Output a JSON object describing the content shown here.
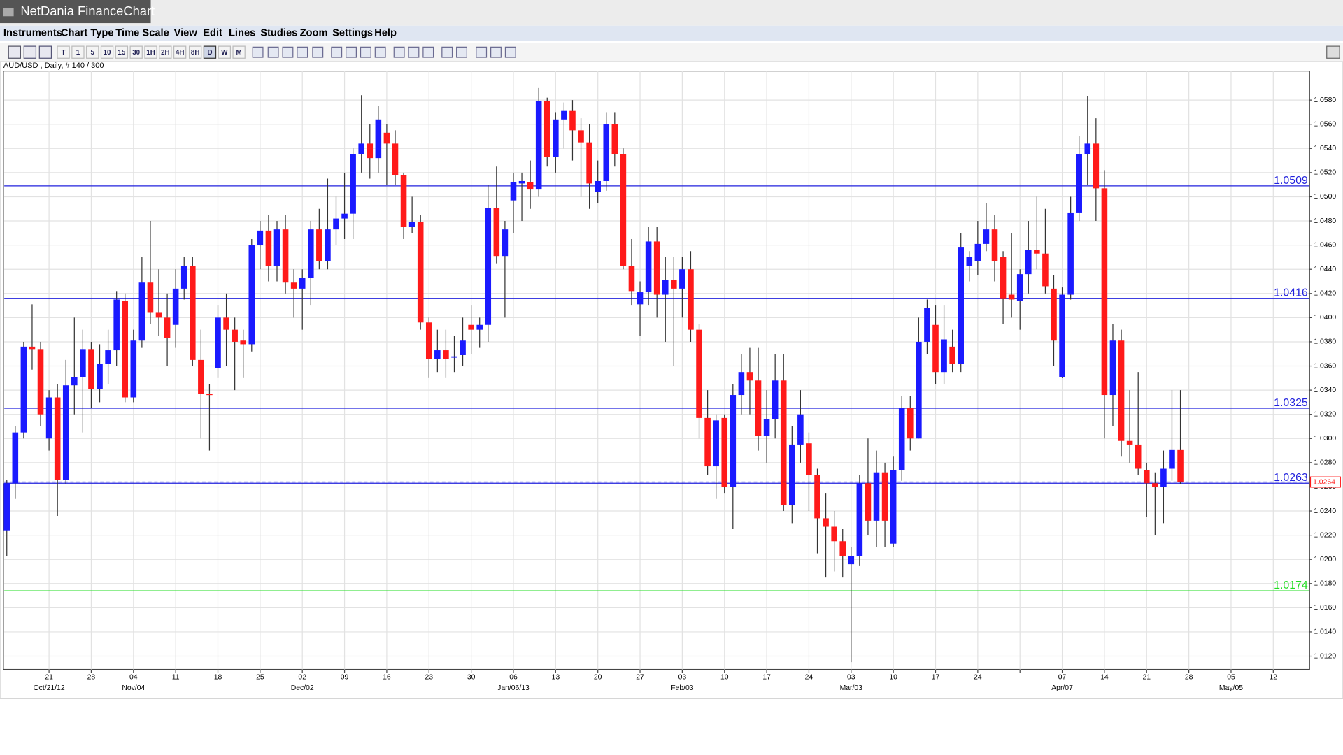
{
  "window": {
    "title": "NetDania FinanceChart"
  },
  "menu": [
    "Instruments",
    "Chart Type",
    "Time Scale",
    "View",
    "Edit",
    "Lines",
    "Studies",
    "Zoom",
    "Settings",
    "Help"
  ],
  "toolbar": [
    "T",
    "1",
    "5",
    "10",
    "15",
    "30",
    "1H",
    "2H",
    "4H",
    "8H",
    "D",
    "W",
    "M"
  ],
  "chart_data": {
    "type": "candlestick",
    "subtitle": "AUD/USD , Daily, # 140 / 300",
    "up_color": "#1a1aff",
    "down_color": "#ff1a1a",
    "open": [
      1.0224,
      1.0263,
      1.0305,
      1.0376,
      1.0374,
      1.03,
      1.0334,
      1.0266,
      1.0344,
      1.0351,
      1.0374,
      1.0341,
      1.0362,
      1.0373,
      1.0414,
      1.0334,
      1.0381,
      1.0429,
      1.0404,
      1.04,
      1.0394,
      1.0424,
      1.0443,
      1.0365,
      1.0337,
      1.0358,
      1.04,
      1.039,
      1.0381,
      1.0378,
      1.046,
      1.0472,
      1.0443,
      1.0473,
      1.0429,
      1.0424,
      1.0433,
      1.0473,
      1.0447,
      1.0473,
      1.0482,
      1.0486,
      1.0535,
      1.0544,
      1.0532,
      1.0553,
      1.0544,
      1.0518,
      1.0475,
      1.0479,
      1.0396,
      1.0366,
      1.0373,
      1.0367,
      1.0369,
      1.0394,
      1.039,
      1.0394,
      1.0491,
      1.0451,
      1.0497,
      1.0511,
      1.0512,
      1.0506,
      1.0579,
      1.0533,
      1.0564,
      1.0571,
      1.0555,
      1.0545,
      1.0504,
      1.0513,
      1.056,
      1.0535,
      1.0443,
      1.0411,
      1.0421,
      1.0463,
      1.0419,
      1.0431,
      1.0424,
      1.044,
      1.039,
      1.0317,
      1.0277,
      1.0317,
      1.026,
      1.0336,
      1.0355,
      1.0348,
      1.0302,
      1.0316,
      1.0348,
      1.0245,
      1.0295,
      1.0296,
      1.027,
      1.0234,
      1.0227,
      1.0215,
      1.0196,
      1.0203,
      1.0263,
      1.0232,
      1.0272,
      1.0213,
      1.0274,
      1.0325,
      1.03,
      1.038,
      1.0394,
      1.0355,
      1.0376,
      1.0362,
      1.0443,
      1.0447,
      1.0461,
      1.0473,
      1.045,
      1.0419,
      1.0414,
      1.0436,
      1.0456,
      1.0453,
      1.0424,
      1.0351,
      1.0419,
      1.0487,
      1.0535,
      1.0544,
      1.0507,
      1.0336,
      1.0381,
      1.0298,
      1.0295,
      1.0274,
      1.0263,
      1.026,
      1.0275,
      1.0291
    ],
    "high": [
      1.0266,
      1.031,
      1.038,
      1.0411,
      1.038,
      1.034,
      1.0345,
      1.0365,
      1.04,
      1.039,
      1.038,
      1.0378,
      1.039,
      1.0422,
      1.042,
      1.039,
      1.045,
      1.048,
      1.044,
      1.042,
      1.044,
      1.045,
      1.045,
      1.039,
      1.0345,
      1.041,
      1.042,
      1.04,
      1.039,
      1.0465,
      1.048,
      1.0485,
      1.048,
      1.0485,
      1.044,
      1.044,
      1.048,
      1.049,
      1.0515,
      1.05,
      1.052,
      1.054,
      1.0584,
      1.056,
      1.0575,
      1.056,
      1.0555,
      1.052,
      1.05,
      1.0485,
      1.04,
      1.039,
      1.039,
      1.0385,
      1.04,
      1.041,
      1.04,
      1.051,
      1.0525,
      1.048,
      1.052,
      1.052,
      1.053,
      1.059,
      1.0582,
      1.057,
      1.0578,
      1.058,
      1.0565,
      1.056,
      1.053,
      1.057,
      1.057,
      1.054,
      1.0465,
      1.043,
      1.0475,
      1.0475,
      1.045,
      1.045,
      1.045,
      1.0455,
      1.0395,
      1.034,
      1.032,
      1.032,
      1.0345,
      1.037,
      1.0375,
      1.0375,
      1.034,
      1.037,
      1.037,
      1.031,
      1.034,
      1.0305,
      1.0275,
      1.0255,
      1.024,
      1.0225,
      1.021,
      1.027,
      1.03,
      1.029,
      1.028,
      1.0285,
      1.0335,
      1.0335,
      1.04,
      1.0415,
      1.041,
      1.041,
      1.039,
      1.047,
      1.0455,
      1.048,
      1.0495,
      1.0485,
      1.0455,
      1.047,
      1.044,
      1.048,
      1.05,
      1.049,
      1.0435,
      1.0425,
      1.05,
      1.055,
      1.0583,
      1.0565,
      1.0522,
      1.0395,
      1.039,
      1.034,
      1.0355,
      1.028,
      1.0272,
      1.029,
      1.034,
      1.034
    ],
    "low": [
      1.0203,
      1.025,
      1.03,
      1.0357,
      1.031,
      1.029,
      1.0236,
      1.0262,
      1.032,
      1.0305,
      1.0325,
      1.033,
      1.0345,
      1.036,
      1.033,
      1.033,
      1.0375,
      1.0395,
      1.0385,
      1.036,
      1.0375,
      1.0415,
      1.036,
      1.03,
      1.029,
      1.035,
      1.036,
      1.034,
      1.035,
      1.0372,
      1.044,
      1.043,
      1.043,
      1.042,
      1.04,
      1.039,
      1.041,
      1.044,
      1.044,
      1.046,
      1.0465,
      1.0465,
      1.052,
      1.0515,
      1.052,
      1.051,
      1.051,
      1.0465,
      1.047,
      1.039,
      1.035,
      1.0355,
      1.035,
      1.0355,
      1.036,
      1.037,
      1.0375,
      1.038,
      1.0445,
      1.04,
      1.047,
      1.048,
      1.049,
      1.05,
      1.0525,
      1.052,
      1.054,
      1.053,
      1.05,
      1.049,
      1.0495,
      1.0505,
      1.0525,
      1.044,
      1.041,
      1.0385,
      1.041,
      1.04,
      1.038,
      1.036,
      1.04,
      1.038,
      1.03,
      1.027,
      1.025,
      1.0255,
      1.0225,
      1.032,
      1.032,
      1.029,
      1.028,
      1.03,
      1.024,
      1.023,
      1.028,
      1.024,
      1.0205,
      1.0185,
      1.019,
      1.0185,
      1.0115,
      1.0195,
      1.022,
      1.021,
      1.021,
      1.021,
      1.0265,
      1.029,
      1.03,
      1.037,
      1.0345,
      1.0345,
      1.0355,
      1.0355,
      1.043,
      1.0435,
      1.0455,
      1.043,
      1.0395,
      1.04,
      1.039,
      1.042,
      1.044,
      1.042,
      1.036,
      1.035,
      1.0415,
      1.048,
      1.051,
      1.048,
      1.03,
      1.031,
      1.0285,
      1.028,
      1.027,
      1.0235,
      1.022,
      1.023,
      1.0265,
      1.0262
    ],
    "close": [
      1.0263,
      1.0305,
      1.0376,
      1.0374,
      1.032,
      1.0334,
      1.0266,
      1.0344,
      1.0351,
      1.0374,
      1.0341,
      1.0362,
      1.0373,
      1.0415,
      1.0334,
      1.0381,
      1.0429,
      1.0404,
      1.04,
      1.0383,
      1.0424,
      1.0443,
      1.0365,
      1.0337,
      1.0336,
      1.04,
      1.039,
      1.038,
      1.0378,
      1.046,
      1.0472,
      1.0443,
      1.0473,
      1.0429,
      1.0424,
      1.0433,
      1.0473,
      1.0447,
      1.0473,
      1.0482,
      1.0486,
      1.0535,
      1.0544,
      1.0532,
      1.0564,
      1.0544,
      1.0518,
      1.0475,
      1.0479,
      1.0396,
      1.0366,
      1.0373,
      1.0366,
      1.0368,
      1.0381,
      1.039,
      1.0394,
      1.0491,
      1.0451,
      1.0473,
      1.0512,
      1.0513,
      1.0506,
      1.0579,
      1.0533,
      1.0564,
      1.0571,
      1.0555,
      1.0545,
      1.0511,
      1.0513,
      1.056,
      1.0535,
      1.0443,
      1.0422,
      1.0421,
      1.0463,
      1.0419,
      1.0431,
      1.0424,
      1.044,
      1.039,
      1.0317,
      1.0277,
      1.0315,
      1.026,
      1.0336,
      1.0355,
      1.0348,
      1.0302,
      1.0316,
      1.0348,
      1.0245,
      1.0295,
      1.032,
      1.027,
      1.0234,
      1.0227,
      1.0215,
      1.0203,
      1.0203,
      1.0263,
      1.0232,
      1.0272,
      1.0232,
      1.0274,
      1.0325,
      1.03,
      1.038,
      1.0408,
      1.0355,
      1.0382,
      1.0362,
      1.0458,
      1.045,
      1.0461,
      1.0473,
      1.0447,
      1.0416,
      1.0415,
      1.0436,
      1.0456,
      1.0453,
      1.0426,
      1.0381,
      1.0419,
      1.0487,
      1.0535,
      1.0544,
      1.0507,
      1.0336,
      1.0381,
      1.0298,
      1.0295,
      1.0275,
      1.0263,
      1.026,
      1.0275,
      1.0291,
      1.0264
    ],
    "xlim": [
      -0.3,
      154.2
    ],
    "xticks": [
      {
        "value": 5,
        "label": "21"
      },
      {
        "value": 10,
        "label": "28"
      },
      {
        "value": 15,
        "label": "04"
      },
      {
        "value": 20,
        "label": "11"
      },
      {
        "value": 25,
        "label": "18"
      },
      {
        "value": 30,
        "label": "25"
      },
      {
        "value": 35,
        "label": "02"
      },
      {
        "value": 40,
        "label": "09"
      },
      {
        "value": 45,
        "label": "16"
      },
      {
        "value": 50,
        "label": "23"
      },
      {
        "value": 55,
        "label": "30"
      },
      {
        "value": 60,
        "label": "06"
      },
      {
        "value": 65,
        "label": "13"
      },
      {
        "value": 70,
        "label": "20"
      },
      {
        "value": 75,
        "label": "27"
      },
      {
        "value": 80,
        "label": "03"
      },
      {
        "value": 85,
        "label": "10"
      },
      {
        "value": 90,
        "label": "17"
      },
      {
        "value": 95,
        "label": "24"
      },
      {
        "value": 100,
        "label": "03"
      },
      {
        "value": 105,
        "label": "10"
      },
      {
        "value": 110,
        "label": "17"
      },
      {
        "value": 115,
        "label": "24"
      },
      {
        "value": 120,
        "label": null
      },
      {
        "value": 125,
        "label": "07"
      },
      {
        "value": 130,
        "label": "14"
      },
      {
        "value": 135,
        "label": "21"
      },
      {
        "value": 140,
        "label": "28"
      },
      {
        "value": 145,
        "label": "05"
      },
      {
        "value": 150,
        "label": "12"
      }
    ],
    "xticks_major": [
      {
        "value": 5,
        "label": "Oct/21/12"
      },
      {
        "value": 15,
        "label": "Nov/04"
      },
      {
        "value": 35,
        "label": "Dec/02"
      },
      {
        "value": 60,
        "label": "Jan/06/13"
      },
      {
        "value": 80,
        "label": "Feb/03"
      },
      {
        "value": 100,
        "label": "Mar/03"
      },
      {
        "value": 125,
        "label": "Apr/07"
      },
      {
        "value": 145,
        "label": "May/05"
      }
    ],
    "ylim": [
      1.0109,
      1.0604
    ],
    "yticks": [
      {
        "value": 1.012,
        "label": "1.0120"
      },
      {
        "value": 1.014,
        "label": "1.0140"
      },
      {
        "value": 1.016,
        "label": "1.0160"
      },
      {
        "value": 1.018,
        "label": "1.0180"
      },
      {
        "value": 1.02,
        "label": "1.0200"
      },
      {
        "value": 1.022,
        "label": "1.0220"
      },
      {
        "value": 1.024,
        "label": "1.0240"
      },
      {
        "value": 1.026,
        "label": "1.0260"
      },
      {
        "value": 1.028,
        "label": "1.0280"
      },
      {
        "value": 1.03,
        "label": "1.0300"
      },
      {
        "value": 1.032,
        "label": "1.0320"
      },
      {
        "value": 1.034,
        "label": "1.0340"
      },
      {
        "value": 1.036,
        "label": "1.0360"
      },
      {
        "value": 1.038,
        "label": "1.0380"
      },
      {
        "value": 1.04,
        "label": "1.0400"
      },
      {
        "value": 1.042,
        "label": "1.0420"
      },
      {
        "value": 1.044,
        "label": "1.0440"
      },
      {
        "value": 1.046,
        "label": "1.0460"
      },
      {
        "value": 1.048,
        "label": "1.0480"
      },
      {
        "value": 1.05,
        "label": "1.0500"
      },
      {
        "value": 1.052,
        "label": "1.0520"
      },
      {
        "value": 1.054,
        "label": "1.0540"
      },
      {
        "value": 1.056,
        "label": "1.0560"
      },
      {
        "value": 1.058,
        "label": "1.0580"
      }
    ],
    "grid": true,
    "lines": [
      {
        "value": 1.0509,
        "color": "#2222dd"
      },
      {
        "value": 1.0416,
        "color": "#2222dd"
      },
      {
        "value": 1.0325,
        "color": "#2222dd"
      },
      {
        "value": 1.0263,
        "color": "#2222dd"
      },
      {
        "value": 1.0174,
        "color": "#22dd22"
      }
    ],
    "last": {
      "value": 1.0264,
      "color": "#ff1a1a"
    }
  }
}
